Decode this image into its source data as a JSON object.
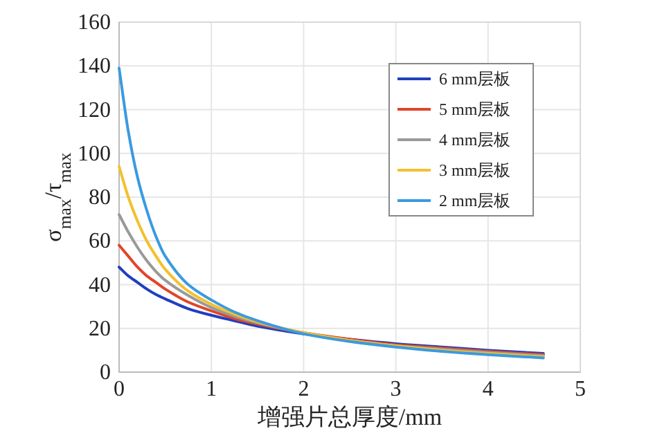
{
  "chart_data": {
    "type": "line",
    "xlabel": "增强片总厚度/mm",
    "ylabel": "σ$_{max}$/τ$_{max}$",
    "x": [
      0,
      0.1,
      0.2,
      0.3,
      0.4,
      0.5,
      0.75,
      1,
      1.25,
      1.5,
      2,
      2.5,
      3,
      3.5,
      4,
      4.6
    ],
    "series": [
      {
        "name": "6 mm层板",
        "color": "#1f3fbf",
        "values": [
          48,
          44,
          41,
          38,
          35.5,
          33.5,
          29,
          26,
          23.5,
          21,
          17.5,
          15,
          13,
          11.5,
          10,
          8.5
        ]
      },
      {
        "name": "5 mm层板",
        "color": "#e0452a",
        "values": [
          58,
          53,
          48,
          44,
          41,
          38,
          32,
          28,
          24.5,
          22,
          18,
          15,
          12.5,
          11,
          9.5,
          8
        ]
      },
      {
        "name": "4 mm层板",
        "color": "#999999",
        "values": [
          72,
          64,
          57,
          51,
          46,
          42,
          35,
          29.5,
          25.5,
          22.5,
          18,
          14.5,
          12,
          10.5,
          9,
          7.5
        ]
      },
      {
        "name": "3 mm层板",
        "color": "#f2c12e",
        "values": [
          94,
          80,
          69,
          60,
          53,
          47,
          37,
          31,
          26.5,
          23,
          18,
          14.5,
          12,
          10,
          8.5,
          7
        ]
      },
      {
        "name": "2 mm层板",
        "color": "#3a9ae0",
        "values": [
          139,
          110,
          89,
          74,
          62,
          53,
          40,
          33,
          27.5,
          23.5,
          17.5,
          14,
          11.5,
          9.5,
          8,
          6.5
        ]
      }
    ],
    "xlim": [
      0,
      5
    ],
    "ylim": [
      0,
      160
    ],
    "xticks": [
      0,
      1,
      2,
      3,
      4,
      5
    ],
    "yticks": [
      0,
      20,
      40,
      60,
      80,
      100,
      120,
      140,
      160
    ],
    "grid": true,
    "legend": "top right",
    "marker": "none",
    "line_style": "solid"
  }
}
